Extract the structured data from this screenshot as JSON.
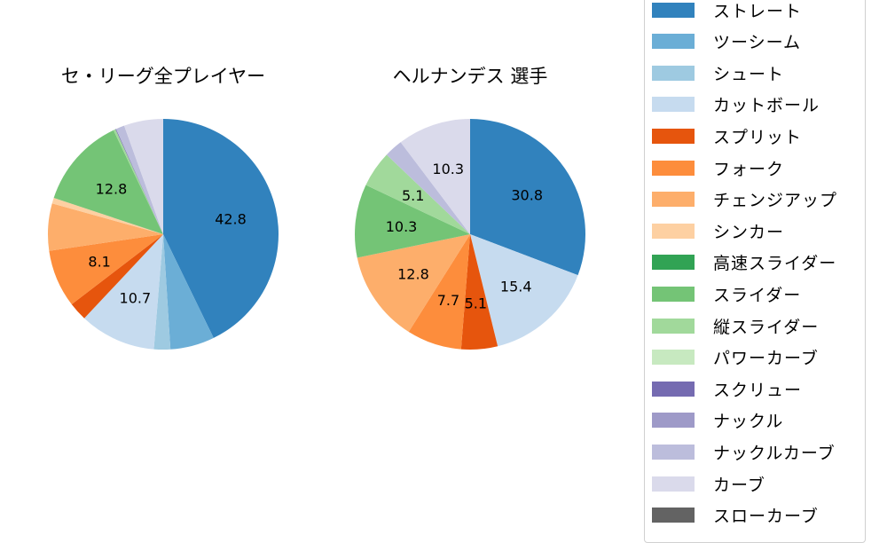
{
  "chart_data": [
    {
      "type": "pie",
      "title": "セ・リーグ全プレイヤー",
      "slices": [
        {
          "label": "ストレート",
          "value": 42.8,
          "color": "#3182bd",
          "show_label": true
        },
        {
          "label": "ツーシーム",
          "value": 6.2,
          "color": "#6baed6",
          "show_label": false
        },
        {
          "label": "シュート",
          "value": 2.3,
          "color": "#9ecae1",
          "show_label": false
        },
        {
          "label": "カットボール",
          "value": 10.7,
          "color": "#c6dbef",
          "show_label": true
        },
        {
          "label": "スプリット",
          "value": 2.6,
          "color": "#e6550d",
          "show_label": false
        },
        {
          "label": "フォーク",
          "value": 8.1,
          "color": "#fd8d3c",
          "show_label": true
        },
        {
          "label": "チェンジアップ",
          "value": 6.6,
          "color": "#fdae6b",
          "show_label": false
        },
        {
          "label": "シンカー",
          "value": 0.8,
          "color": "#fdd0a2",
          "show_label": false
        },
        {
          "label": "スライダー",
          "value": 12.8,
          "color": "#74c476",
          "show_label": true
        },
        {
          "label": "縦スライダー",
          "value": 0.3,
          "color": "#a1d99b",
          "show_label": false
        },
        {
          "label": "スクリュー",
          "value": 0.1,
          "color": "#756bb1",
          "show_label": false
        },
        {
          "label": "ナックルカーブ",
          "value": 1.2,
          "color": "#bcbddc",
          "show_label": false
        },
        {
          "label": "カーブ",
          "value": 5.5,
          "color": "#dadaeb",
          "show_label": false
        }
      ]
    },
    {
      "type": "pie",
      "title": "ヘルナンデス  選手",
      "slices": [
        {
          "label": "ストレート",
          "value": 30.8,
          "color": "#3182bd",
          "show_label": true
        },
        {
          "label": "カットボール",
          "value": 15.4,
          "color": "#c6dbef",
          "show_label": true
        },
        {
          "label": "スプリット",
          "value": 5.1,
          "color": "#e6550d",
          "show_label": true
        },
        {
          "label": "フォーク",
          "value": 7.7,
          "color": "#fd8d3c",
          "show_label": true
        },
        {
          "label": "チェンジアップ",
          "value": 12.8,
          "color": "#fdae6b",
          "show_label": true
        },
        {
          "label": "スライダー",
          "value": 10.3,
          "color": "#74c476",
          "show_label": true
        },
        {
          "label": "縦スライダー",
          "value": 5.1,
          "color": "#a1d99b",
          "show_label": true
        },
        {
          "label": "ナックルカーブ",
          "value": 2.6,
          "color": "#bcbddc",
          "show_label": false
        },
        {
          "label": "カーブ",
          "value": 10.3,
          "color": "#dadaeb",
          "show_label": true
        }
      ]
    }
  ],
  "titles": {
    "left": "セ・リーグ全プレイヤー",
    "right": "ヘルナンデス  選手"
  },
  "legend": {
    "position": "right",
    "items": [
      {
        "label": "ストレート",
        "color": "#3182bd"
      },
      {
        "label": "ツーシーム",
        "color": "#6baed6"
      },
      {
        "label": "シュート",
        "color": "#9ecae1"
      },
      {
        "label": "カットボール",
        "color": "#c6dbef"
      },
      {
        "label": "スプリット",
        "color": "#e6550d"
      },
      {
        "label": "フォーク",
        "color": "#fd8d3c"
      },
      {
        "label": "チェンジアップ",
        "color": "#fdae6b"
      },
      {
        "label": "シンカー",
        "color": "#fdd0a2"
      },
      {
        "label": "高速スライダー",
        "color": "#31a354"
      },
      {
        "label": "スライダー",
        "color": "#74c476"
      },
      {
        "label": "縦スライダー",
        "color": "#a1d99b"
      },
      {
        "label": "パワーカーブ",
        "color": "#c7e9c0"
      },
      {
        "label": "スクリュー",
        "color": "#756bb1"
      },
      {
        "label": "ナックル",
        "color": "#9e9ac8"
      },
      {
        "label": "ナックルカーブ",
        "color": "#bcbddc"
      },
      {
        "label": "カーブ",
        "color": "#dadaeb"
      },
      {
        "label": "スローカーブ",
        "color": "#636363"
      }
    ]
  }
}
